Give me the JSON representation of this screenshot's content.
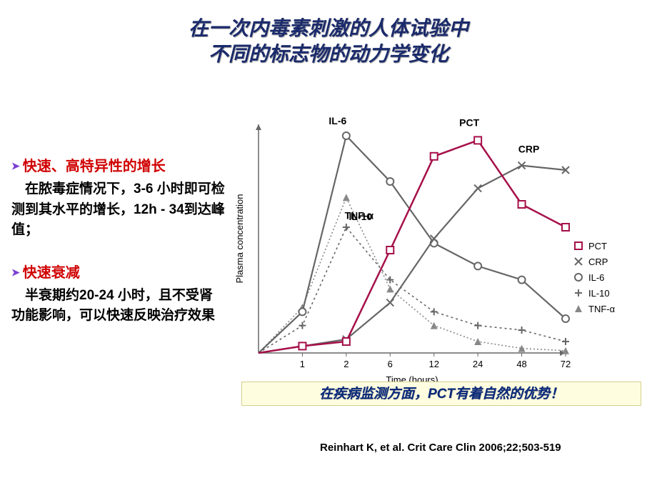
{
  "title_line1": "在一次内毒素刺激的人体试验中",
  "title_line2": "不同的标志物的动力学变化",
  "left": {
    "bullet1": "快速、高特异性的增长",
    "body1": "在脓毒症情况下，3-6 小时即可检测到其水平的增长，12h - 34到达峰值；",
    "bullet2": "快速衰减",
    "body2": "半衰期约20-24 小时，且不受肾功能影响，可以快速反映治疗效果"
  },
  "highlight": "在疾病监测方面，PCT有着自然的优势！",
  "citation": "Reinhart K, et al. Crit Care Clin 2006;22;503-519",
  "chart": {
    "type": "line",
    "x_tick_labels": [
      "1",
      "2",
      "6",
      "12",
      "24",
      "48",
      "72"
    ],
    "xlabel": "Time (hours)",
    "ylabel": "Plasma concentration",
    "label_fontsize": 13,
    "annotation_fontsize": 14,
    "axis_color": "#666666",
    "grid_color": "#cccccc",
    "background_color": "#ffffff",
    "legend": [
      "PCT",
      "CRP",
      "IL-6",
      "IL-10",
      "TNF-α"
    ],
    "legend_markers": [
      "square",
      "x",
      "circle",
      "plus",
      "triangle"
    ],
    "legend_colors": [
      "#a6104a",
      "#666666",
      "#666666",
      "#666666",
      "#888888"
    ],
    "series": {
      "PCT": {
        "color": "#a6104a",
        "width": 2.5,
        "dash": "",
        "marker": "square",
        "y": [
          0,
          3,
          5,
          45,
          86,
          93,
          65,
          55
        ]
      },
      "CRP": {
        "color": "#666666",
        "width": 2.2,
        "dash": "",
        "marker": "x",
        "y": [
          0,
          3,
          6,
          22,
          50,
          72,
          82,
          80
        ]
      },
      "IL-6": {
        "color": "#666666",
        "width": 2.2,
        "dash": "",
        "marker": "circle",
        "y": [
          0,
          18,
          95,
          75,
          48,
          38,
          32,
          15
        ]
      },
      "IL-10": {
        "color": "#666666",
        "width": 1.6,
        "dash": "3 4",
        "marker": "plus",
        "y": [
          0,
          12,
          55,
          32,
          18,
          12,
          10,
          5
        ]
      },
      "TNF": {
        "color": "#888888",
        "width": 1.6,
        "dash": "2 3",
        "marker": "triangle",
        "y": [
          0,
          20,
          68,
          28,
          12,
          5,
          2,
          1
        ]
      }
    },
    "inline_labels": {
      "PCT": {
        "text": "PCT",
        "atIndex": 5,
        "dx": -12,
        "dy": -20
      },
      "CRP": {
        "text": "CRP",
        "atIndex": 6,
        "dx": 10,
        "dy": -18
      },
      "IL6": {
        "text": "IL-6",
        "atIndex": 2,
        "dx": -12,
        "dy": -16
      },
      "IL10": {
        "text": "IL-10",
        "atIndex": 2,
        "dx": 20,
        "dy": -10
      },
      "TNF": {
        "text": "TNF-α",
        "atIndex": 2,
        "dx": 18,
        "dy": 30
      }
    }
  }
}
